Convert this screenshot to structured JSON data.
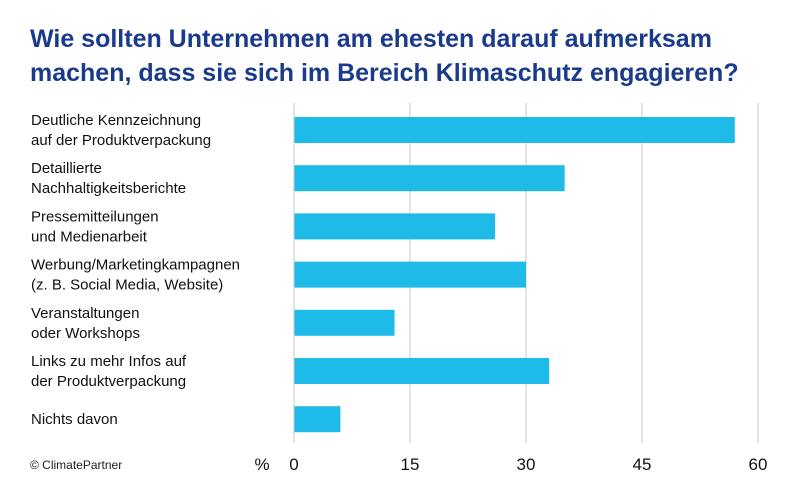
{
  "title_lines": [
    "Wie sollten Unternehmen am ehesten darauf aufmerksam",
    "machen, dass sie sich im Bereich Klimaschutz engagieren?"
  ],
  "copyright": "© ClimatePartner",
  "colors": {
    "title": "#1a3a8c",
    "bar": "#1ebbe8",
    "grid": "#c8c8c8"
  },
  "chart_data": {
    "type": "bar",
    "orientation": "horizontal",
    "categories": [
      [
        "Deutliche Kennzeichnung",
        "auf der Produktverpackung"
      ],
      [
        "Detaillierte",
        "Nachhaltigkeitsberichte"
      ],
      [
        "Pressemitteilungen",
        "und Medienarbeit"
      ],
      [
        "Werbung/Marketingkampagnen",
        "(z. B. Social Media, Website)"
      ],
      [
        "Veranstaltungen",
        "oder Workshops"
      ],
      [
        "Links zu mehr Infos auf",
        "der Produktverpackung"
      ],
      [
        "Nichts davon"
      ]
    ],
    "values": [
      57,
      35,
      26,
      30,
      13,
      33,
      6
    ],
    "x_unit_label": "%",
    "xlim": [
      0,
      60
    ],
    "xticks": [
      0,
      15,
      30,
      45,
      60
    ],
    "grid": true,
    "title": "Wie sollten Unternehmen am ehesten darauf aufmerksam machen, dass sie sich im Bereich Klimaschutz engagieren?"
  }
}
